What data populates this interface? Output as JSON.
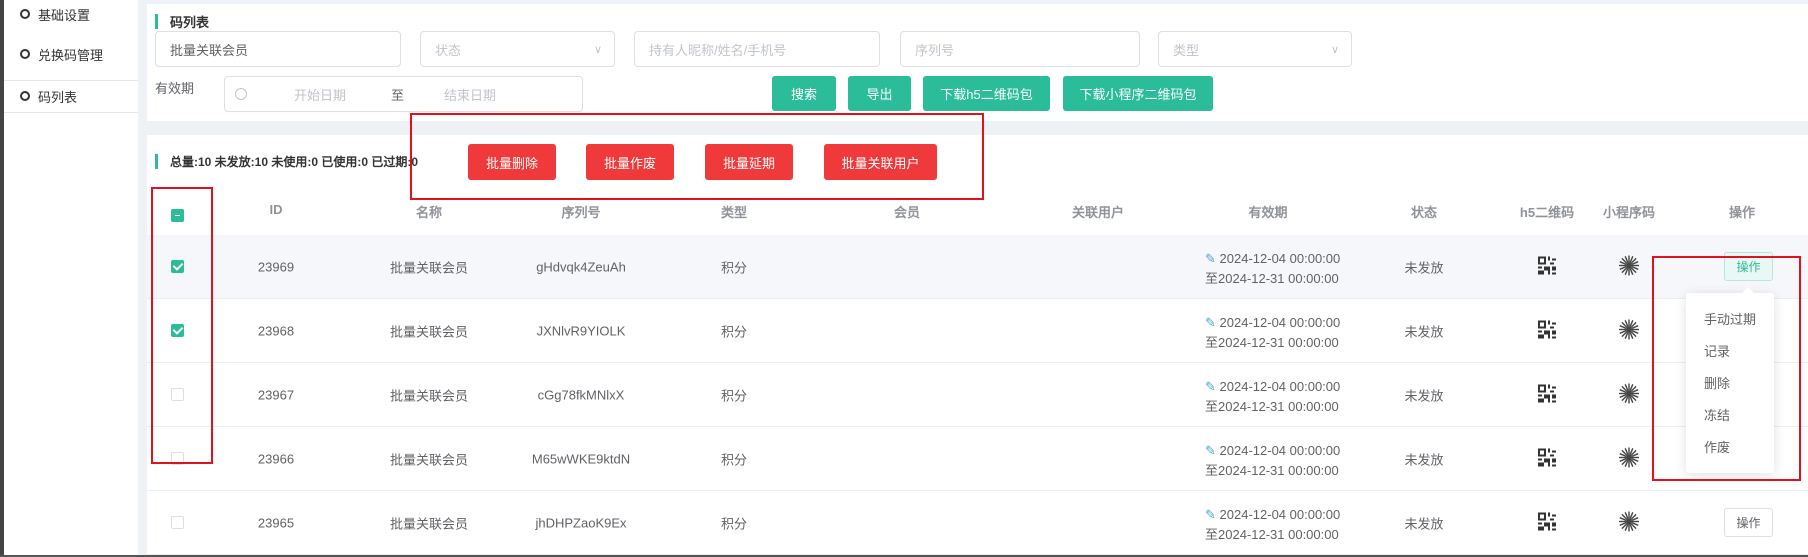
{
  "sidebar": {
    "items": [
      {
        "label": "基础设置"
      },
      {
        "label": "兑换码管理"
      },
      {
        "label": "码列表"
      }
    ]
  },
  "filter": {
    "title": "码列表",
    "name_value": "批量关联会员",
    "status_placeholder": "状态",
    "holder_placeholder": "持有人昵称/姓名/手机号",
    "serial_placeholder": "序列号",
    "type_placeholder": "类型",
    "validity_label": "有效期",
    "start_placeholder": "开始日期",
    "range_sep": "至",
    "end_placeholder": "结束日期",
    "search": "搜索",
    "export": "导出",
    "download_h5": "下载h5二维码包",
    "download_mini": "下载小程序二维码包"
  },
  "list": {
    "stats": "总量:10 未发放:10 未使用:0 已使用:0 已过期:0",
    "batch": {
      "delete": "批量删除",
      "void": "批量作废",
      "extend": "批量延期",
      "link_user": "批量关联用户"
    },
    "columns": [
      "ID",
      "名称",
      "序列号",
      "类型",
      "会员",
      "关联用户",
      "有效期",
      "状态",
      "h5二维码",
      "小程序码",
      "操作"
    ],
    "rows": [
      {
        "id": "23969",
        "name": "批量关联会员",
        "serial": "gHdvqk4ZeuAh",
        "type": "积分",
        "member": "",
        "user": "",
        "valid_from": "2024-12-04 00:00:00",
        "valid_to": "至2024-12-31 00:00:00",
        "status": "未发放",
        "checked": true,
        "op": "操作"
      },
      {
        "id": "23968",
        "name": "批量关联会员",
        "serial": "JXNlvR9YIOLK",
        "type": "积分",
        "member": "",
        "user": "",
        "valid_from": "2024-12-04 00:00:00",
        "valid_to": "至2024-12-31 00:00:00",
        "status": "未发放",
        "checked": true
      },
      {
        "id": "23967",
        "name": "批量关联会员",
        "serial": "cGg78fkMNlxX",
        "type": "积分",
        "member": "",
        "user": "",
        "valid_from": "2024-12-04 00:00:00",
        "valid_to": "至2024-12-31 00:00:00",
        "status": "未发放",
        "checked": false
      },
      {
        "id": "23966",
        "name": "批量关联会员",
        "serial": "M65wWKE9ktdN",
        "type": "积分",
        "member": "",
        "user": "",
        "valid_from": "2024-12-04 00:00:00",
        "valid_to": "至2024-12-31 00:00:00",
        "status": "未发放",
        "checked": false
      },
      {
        "id": "23965",
        "name": "批量关联会员",
        "serial": "jhDHPZaoK9Ex",
        "type": "积分",
        "member": "",
        "user": "",
        "valid_from": "2024-12-04 00:00:00",
        "valid_to": "至2024-12-31 00:00:00",
        "status": "未发放",
        "checked": false,
        "op": "操作"
      }
    ],
    "menu": [
      "手动过期",
      "记录",
      "删除",
      "冻结",
      "作废"
    ]
  },
  "colors": {
    "primary": "#2bbc9a",
    "danger": "#f0393a",
    "highlight": "#e3111d"
  }
}
